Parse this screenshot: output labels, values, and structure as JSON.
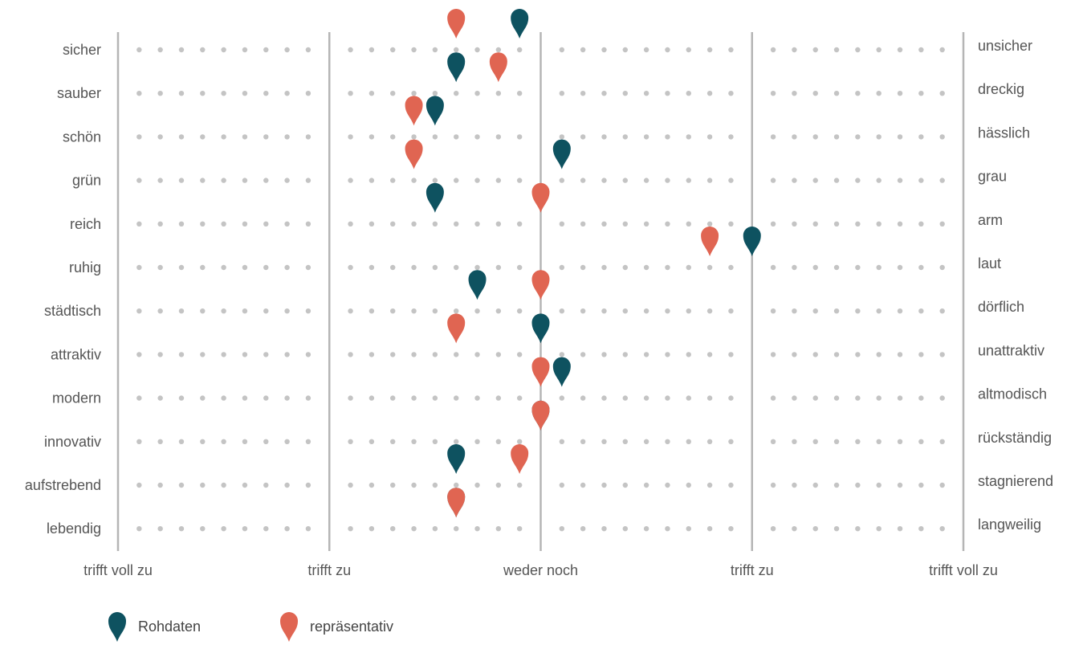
{
  "chart_data": {
    "type": "scatter",
    "title": "",
    "scale": {
      "min": -2,
      "max": 2,
      "labels": [
        "trifft voll zu",
        "trifft zu",
        "weder noch",
        "trifft zu",
        "trifft voll zu"
      ]
    },
    "rows": [
      {
        "left": "sicher",
        "right": "unsicher"
      },
      {
        "left": "sauber",
        "right": "dreckig"
      },
      {
        "left": "schön",
        "right": "hässlich"
      },
      {
        "left": "grün",
        "right": "grau"
      },
      {
        "left": "reich",
        "right": "arm"
      },
      {
        "left": "ruhig",
        "right": "laut"
      },
      {
        "left": "städtisch",
        "right": "dörflich"
      },
      {
        "left": "attraktiv",
        "right": "unattraktiv"
      },
      {
        "left": "modern",
        "right": "altmodisch"
      },
      {
        "left": "innovativ",
        "right": "rückständig"
      },
      {
        "left": "aufstrebend",
        "right": "stagnierend"
      },
      {
        "left": "lebendig",
        "right": "langweilig"
      }
    ],
    "series": [
      {
        "name": "Rohdaten",
        "color": "#0e5260",
        "values": [
          -0.1,
          -0.4,
          -0.5,
          0.1,
          -0.5,
          1.0,
          -0.3,
          0.0,
          0.1,
          0.0,
          -0.4,
          -0.4
        ]
      },
      {
        "name": "repräsentativ",
        "color": "#e06552",
        "values": [
          -0.4,
          -0.2,
          -0.6,
          -0.6,
          0.0,
          0.8,
          0.0,
          -0.4,
          0.0,
          0.0,
          -0.1,
          -0.4
        ]
      }
    ],
    "grid": true,
    "legend": "bottom-left"
  }
}
